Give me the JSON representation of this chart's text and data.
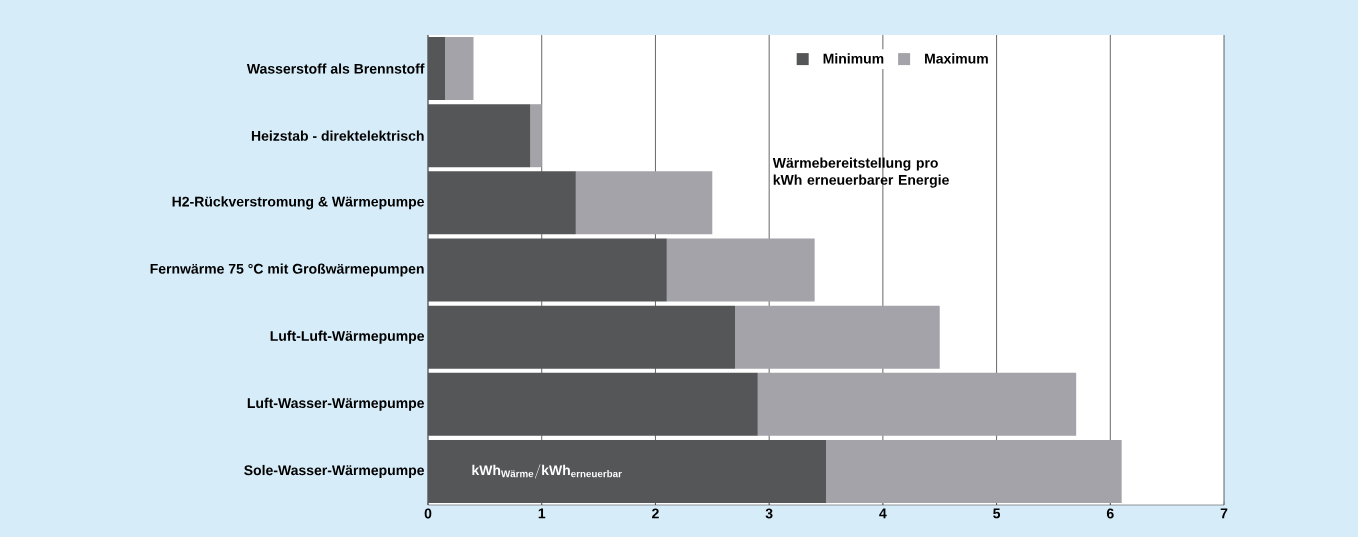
{
  "chart_data": {
    "type": "bar",
    "orientation": "horizontal",
    "stacked": true,
    "categories": [
      "Wasserstoff als Brennstoff",
      "Heizstab - direktelektrisch",
      "H2-Rückverstromung & Wärmepumpe",
      "Fernwärme 75 °C mit Großwärmepumpen",
      "Luft-Luft-Wärmepumpe",
      "Luft-Wasser-Wärmepumpe",
      "Sole-Wasser-Wärmepumpe"
    ],
    "series": [
      {
        "name": "Minimum",
        "color": "#555658",
        "values": [
          0.15,
          0.9,
          1.3,
          2.1,
          2.7,
          2.9,
          3.5
        ]
      },
      {
        "name": "Maximum",
        "color": "#a3a3a9",
        "values": [
          0.25,
          0.1,
          1.2,
          1.3,
          1.8,
          2.8,
          2.6
        ]
      }
    ],
    "xlim": [
      0,
      7
    ],
    "xticks": [
      0,
      1,
      2,
      3,
      4,
      5,
      6,
      7
    ],
    "grid": "x",
    "legend": "top",
    "annotations": [
      "Wärmebereitstellung pro kWh erneuerbarer Energie",
      "\\text{kWh}_{\\text{Wärme}}/\\text{kWh}_{\\text{erneuerbar}}"
    ]
  }
}
